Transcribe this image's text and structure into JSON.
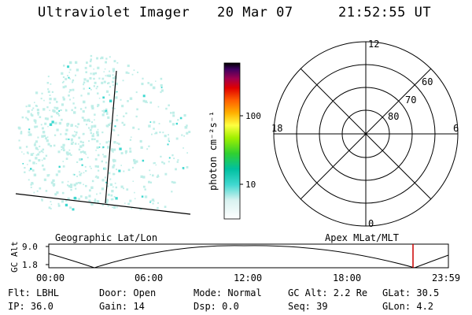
{
  "header": {
    "instrument": "Ultraviolet Imager",
    "date": "20 Mar 07",
    "time": "21:52:55 UT"
  },
  "colorbar": {
    "label": "photon cm⁻²s⁻¹",
    "ticks": [
      "100",
      "10"
    ]
  },
  "polar": {
    "mlt_labels": {
      "top": "12",
      "bottom": "0",
      "left": "18",
      "right": "6"
    },
    "lat_labels": [
      "60",
      "70",
      "80"
    ]
  },
  "timeline": {
    "left_title": "Geographic Lat/Lon",
    "right_title": "Apex MLat/MLT",
    "ylabel": "GC Alt",
    "ytick_top": "9.0",
    "ytick_bottom": "1.8",
    "xticks": [
      "00:00",
      "06:00",
      "12:00",
      "18:00",
      "23:59"
    ],
    "marker_color": "#cc0000"
  },
  "info": {
    "row1": {
      "flt": "Flt: LBHL",
      "door": "Door: Open",
      "mode": "Mode: Normal",
      "gcalt": "GC Alt: 2.2 Re",
      "glat": "GLat:  30.5"
    },
    "row2": {
      "ip": "IP: 36.0",
      "gain": "Gain: 14",
      "dsp": "Dsp:    0.0",
      "seq": "Seq: 39",
      "glon": "GLon:   4.2"
    }
  },
  "colors": {
    "aurora_speckle": "#bfeee8",
    "aurora_bright": "#40d8d0"
  }
}
